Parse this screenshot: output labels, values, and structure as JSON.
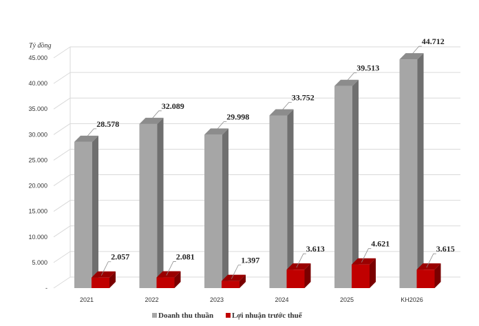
{
  "chart_data": {
    "type": "bar",
    "unit_label": "Tỷ đồng",
    "categories": [
      "2021",
      "2022",
      "2023",
      "2024",
      "2025",
      "KH2026"
    ],
    "series": [
      {
        "name": "Doanh thu thuần",
        "values": [
          28578,
          32089,
          29998,
          33752,
          39513,
          44712
        ],
        "labels": [
          "28.578",
          "32.089",
          "29.998",
          "33.752",
          "39.513",
          "44.712"
        ],
        "color": "#a6a6a6",
        "side_color": "#6f6f6f",
        "top_color": "#8c8c8c"
      },
      {
        "name": "Lợi nhuận trước thuế",
        "values": [
          2057,
          2081,
          1397,
          3613,
          4621,
          3615
        ],
        "labels": [
          "2.057",
          "2.081",
          "1.397",
          "3.613",
          "4.621",
          "3.615"
        ],
        "color": "#c00000",
        "side_color": "#7a0000",
        "top_color": "#9a0000"
      }
    ],
    "ylim": [
      0,
      45000
    ],
    "yticks": [
      0,
      5000,
      10000,
      15000,
      20000,
      25000,
      30000,
      35000,
      40000,
      45000
    ],
    "ytick_labels": [
      "-",
      "5.000",
      "10.000",
      "15.000",
      "20.000",
      "25.000",
      "30.000",
      "35.000",
      "40.000",
      "45.000"
    ],
    "grid": true,
    "legend_position": "bottom",
    "grid_color": "#d9d9d9"
  }
}
